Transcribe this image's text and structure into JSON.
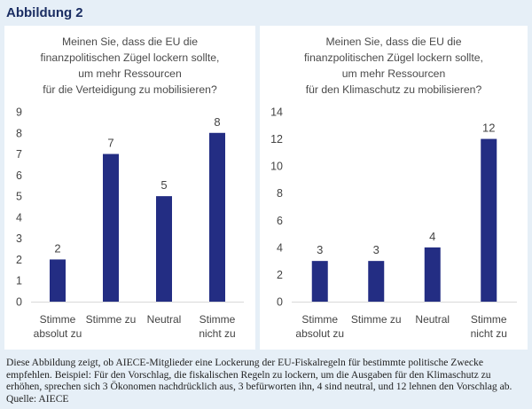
{
  "figure_title": "Abbildung 2",
  "caption": "Diese Abbildung zeigt, ob AIECE-Mitglieder eine Lockerung der EU-Fiskalregeln für bestimmte politische Zwecke empfehlen. Beispiel: Für den Vorschlag, die fiskalischen Regeln zu lockern, um die Ausgaben für den Klimaschutz zu erhöhen, sprechen sich 3 Ökonomen nachdrücklich aus, 3 befürworten ihn, 4 sind neutral, und 12 lehnen den Vorschlag ab. Quelle: AIECE",
  "colors": {
    "bar": "#232d83",
    "text": "#444444",
    "grid": "#d9d9d9"
  },
  "chart_data": [
    {
      "type": "bar",
      "title_lines": [
        "Meinen Sie, dass die EU die",
        "finanzpolitischen Zügel lockern sollte,",
        "um mehr Ressourcen",
        "für die Verteidigung zu mobilisieren?"
      ],
      "categories": [
        [
          "Stimme",
          "absolut zu"
        ],
        [
          "Stimme zu"
        ],
        [
          "Neutral"
        ],
        [
          "Stimme",
          "nicht zu"
        ]
      ],
      "values": [
        2,
        7,
        5,
        8
      ],
      "ylim": [
        0,
        9
      ],
      "yticks": [
        0,
        1,
        2,
        3,
        4,
        5,
        6,
        7,
        8,
        9
      ],
      "data_labels": true,
      "grid": false,
      "legend": "none"
    },
    {
      "type": "bar",
      "title_lines": [
        "Meinen Sie, dass die EU die",
        "finanzpolitischen Zügel lockern sollte,",
        "um mehr Ressourcen",
        "für den Klimaschutz zu mobilisieren?"
      ],
      "categories": [
        [
          "Stimme",
          "absolut zu"
        ],
        [
          "Stimme zu"
        ],
        [
          "Neutral"
        ],
        [
          "Stimme",
          "nicht zu"
        ]
      ],
      "values": [
        3,
        3,
        4,
        12
      ],
      "ylim": [
        0,
        14
      ],
      "yticks": [
        0,
        2,
        4,
        6,
        8,
        10,
        12,
        14
      ],
      "data_labels": true,
      "grid": false,
      "legend": "none"
    }
  ]
}
